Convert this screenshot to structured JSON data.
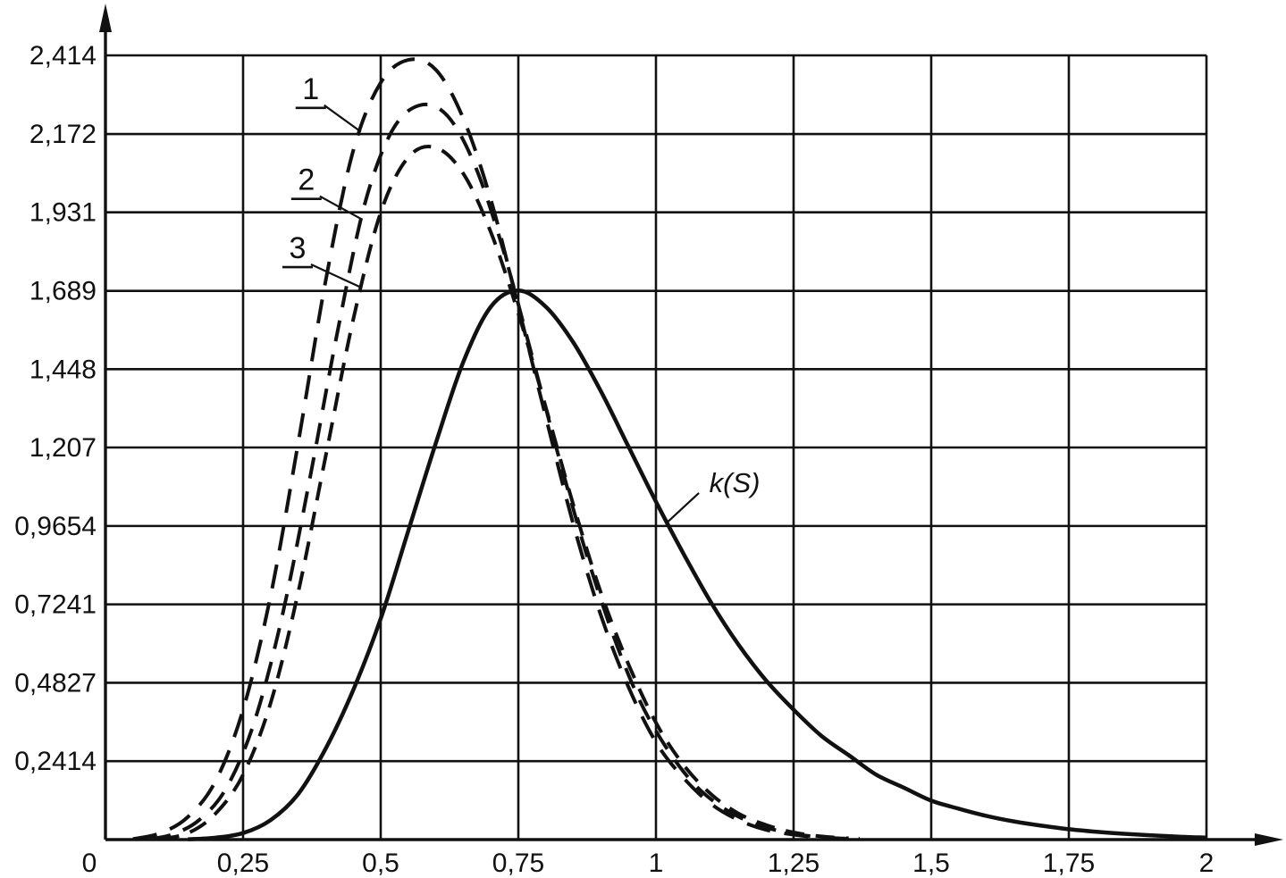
{
  "figure": {
    "background": "#ffffff",
    "ink": "#111111"
  },
  "chart_data": {
    "type": "line",
    "title": "",
    "xlabel": "",
    "ylabel": "",
    "xlim": [
      0,
      2
    ],
    "ylim": [
      0,
      2.414
    ],
    "grid": true,
    "legend": "inline-annotations",
    "x_ticks": [
      {
        "v": 0,
        "label": "0"
      },
      {
        "v": 0.25,
        "label": "0,25"
      },
      {
        "v": 0.5,
        "label": "0,5"
      },
      {
        "v": 0.75,
        "label": "0,75"
      },
      {
        "v": 1,
        "label": "1"
      },
      {
        "v": 1.25,
        "label": "1,25"
      },
      {
        "v": 1.5,
        "label": "1,5"
      },
      {
        "v": 1.75,
        "label": "1,75"
      },
      {
        "v": 2,
        "label": "2"
      }
    ],
    "y_ticks": [
      {
        "v": 0.2414,
        "label": "0,2414"
      },
      {
        "v": 0.4827,
        "label": "0,4827"
      },
      {
        "v": 0.7241,
        "label": "0,7241"
      },
      {
        "v": 0.9654,
        "label": "0,9654"
      },
      {
        "v": 1.207,
        "label": "1,207"
      },
      {
        "v": 1.448,
        "label": "1,448"
      },
      {
        "v": 1.689,
        "label": "1,689"
      },
      {
        "v": 1.931,
        "label": "1,931"
      },
      {
        "v": 2.172,
        "label": "2,172"
      },
      {
        "v": 2.414,
        "label": "2,414"
      }
    ],
    "series": [
      {
        "name": "1",
        "style": "dashed",
        "points": [
          [
            0.05,
            0.002
          ],
          [
            0.1,
            0.02
          ],
          [
            0.15,
            0.07
          ],
          [
            0.2,
            0.18
          ],
          [
            0.25,
            0.4
          ],
          [
            0.3,
            0.75
          ],
          [
            0.35,
            1.22
          ],
          [
            0.4,
            1.72
          ],
          [
            0.45,
            2.12
          ],
          [
            0.5,
            2.33
          ],
          [
            0.55,
            2.4
          ],
          [
            0.6,
            2.37
          ],
          [
            0.65,
            2.22
          ],
          [
            0.7,
            1.97
          ],
          [
            0.75,
            1.64
          ],
          [
            0.8,
            1.3
          ],
          [
            0.85,
            0.97
          ],
          [
            0.9,
            0.69
          ],
          [
            0.95,
            0.47
          ],
          [
            1.0,
            0.3
          ],
          [
            1.05,
            0.19
          ],
          [
            1.1,
            0.11
          ],
          [
            1.15,
            0.06
          ],
          [
            1.2,
            0.03
          ],
          [
            1.25,
            0.015
          ],
          [
            1.3,
            0.006
          ],
          [
            1.35,
            0.002
          ]
        ]
      },
      {
        "name": "2",
        "style": "dashed",
        "points": [
          [
            0.08,
            0.002
          ],
          [
            0.12,
            0.015
          ],
          [
            0.17,
            0.06
          ],
          [
            0.22,
            0.16
          ],
          [
            0.27,
            0.36
          ],
          [
            0.32,
            0.68
          ],
          [
            0.37,
            1.1
          ],
          [
            0.42,
            1.55
          ],
          [
            0.47,
            1.95
          ],
          [
            0.52,
            2.18
          ],
          [
            0.57,
            2.26
          ],
          [
            0.62,
            2.23
          ],
          [
            0.67,
            2.08
          ],
          [
            0.72,
            1.83
          ],
          [
            0.77,
            1.52
          ],
          [
            0.82,
            1.2
          ],
          [
            0.87,
            0.9
          ],
          [
            0.92,
            0.64
          ],
          [
            0.97,
            0.43
          ],
          [
            1.02,
            0.28
          ],
          [
            1.07,
            0.17
          ],
          [
            1.12,
            0.1
          ],
          [
            1.17,
            0.055
          ],
          [
            1.22,
            0.028
          ],
          [
            1.27,
            0.013
          ],
          [
            1.32,
            0.005
          ],
          [
            1.37,
            0.002
          ]
        ]
      },
      {
        "name": "3",
        "style": "dashed",
        "points": [
          [
            0.1,
            0.002
          ],
          [
            0.15,
            0.02
          ],
          [
            0.2,
            0.08
          ],
          [
            0.25,
            0.2
          ],
          [
            0.3,
            0.42
          ],
          [
            0.35,
            0.76
          ],
          [
            0.4,
            1.18
          ],
          [
            0.45,
            1.6
          ],
          [
            0.5,
            1.93
          ],
          [
            0.55,
            2.1
          ],
          [
            0.6,
            2.13
          ],
          [
            0.65,
            2.05
          ],
          [
            0.7,
            1.87
          ],
          [
            0.75,
            1.62
          ],
          [
            0.8,
            1.33
          ],
          [
            0.85,
            1.03
          ],
          [
            0.9,
            0.76
          ],
          [
            0.95,
            0.54
          ],
          [
            1.0,
            0.36
          ],
          [
            1.05,
            0.23
          ],
          [
            1.1,
            0.14
          ],
          [
            1.15,
            0.08
          ],
          [
            1.2,
            0.045
          ],
          [
            1.25,
            0.022
          ],
          [
            1.3,
            0.01
          ],
          [
            1.35,
            0.004
          ]
        ]
      },
      {
        "name": "k(S)",
        "style": "solid",
        "points": [
          [
            0.15,
            0.001
          ],
          [
            0.2,
            0.006
          ],
          [
            0.25,
            0.02
          ],
          [
            0.3,
            0.06
          ],
          [
            0.35,
            0.14
          ],
          [
            0.4,
            0.28
          ],
          [
            0.45,
            0.46
          ],
          [
            0.5,
            0.68
          ],
          [
            0.55,
            0.95
          ],
          [
            0.6,
            1.22
          ],
          [
            0.65,
            1.47
          ],
          [
            0.7,
            1.64
          ],
          [
            0.75,
            1.69
          ],
          [
            0.8,
            1.64
          ],
          [
            0.85,
            1.53
          ],
          [
            0.9,
            1.38
          ],
          [
            0.95,
            1.21
          ],
          [
            1.0,
            1.04
          ],
          [
            1.05,
            0.88
          ],
          [
            1.1,
            0.73
          ],
          [
            1.15,
            0.6
          ],
          [
            1.2,
            0.49
          ],
          [
            1.25,
            0.4
          ],
          [
            1.3,
            0.32
          ],
          [
            1.35,
            0.26
          ],
          [
            1.4,
            0.2
          ],
          [
            1.45,
            0.16
          ],
          [
            1.5,
            0.12
          ],
          [
            1.55,
            0.095
          ],
          [
            1.6,
            0.073
          ],
          [
            1.65,
            0.056
          ],
          [
            1.7,
            0.043
          ],
          [
            1.75,
            0.032
          ],
          [
            1.8,
            0.024
          ],
          [
            1.85,
            0.018
          ],
          [
            1.9,
            0.013
          ],
          [
            1.95,
            0.009
          ],
          [
            2.0,
            0.006
          ]
        ]
      }
    ],
    "annotations": [
      {
        "label": "1",
        "underline": true,
        "italic": false,
        "x": 0.373,
        "y": 2.31,
        "tip_x": 0.464,
        "series": 0
      },
      {
        "label": "2",
        "underline": true,
        "italic": false,
        "x": 0.365,
        "y": 2.03,
        "tip_x": 0.465,
        "series": 1
      },
      {
        "label": "3",
        "underline": true,
        "italic": false,
        "x": 0.349,
        "y": 1.82,
        "tip_x": 0.465,
        "series": 2
      },
      {
        "label": "k(S)",
        "underline": false,
        "italic": true,
        "x": 1.143,
        "y": 1.1,
        "tip_x": 1.02,
        "series": 3
      }
    ]
  }
}
